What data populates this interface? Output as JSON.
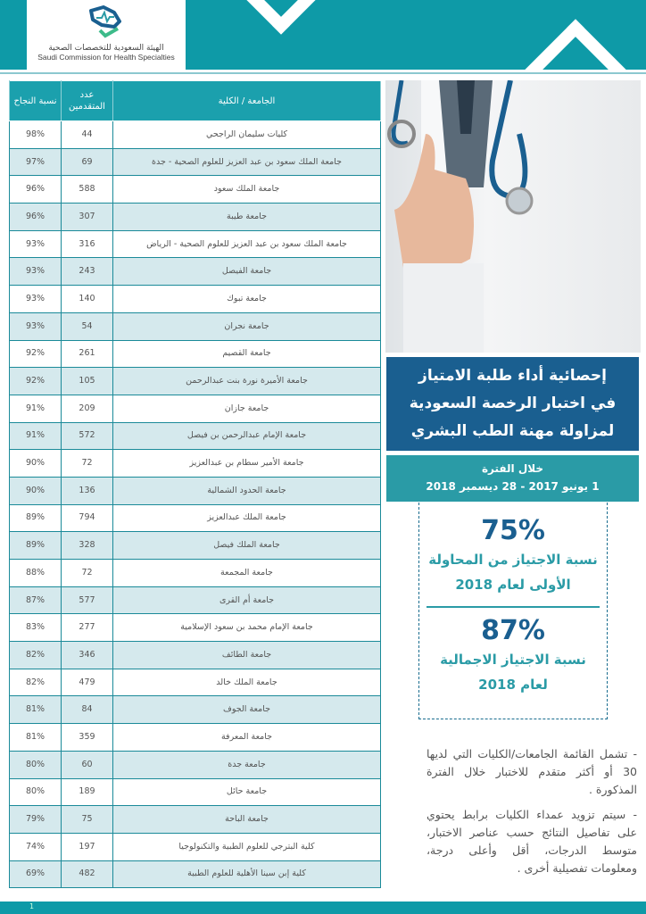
{
  "header": {
    "logo_ar": "الهيئة السعودية للتخصصات الصحية",
    "logo_en": "Saudi Commission for Health Specialties"
  },
  "colors": {
    "teal": "#0e9aa7",
    "navy": "#1a5f90",
    "row_alt": "#d5e9ed"
  },
  "table": {
    "headers": {
      "name": "الجامعة / الكلية",
      "count": "عدد المتقدمين",
      "pct": "نسبة النجاح"
    },
    "rows": [
      {
        "name": "كليات سليمان الراجحي",
        "count": "44",
        "pct": "98%"
      },
      {
        "name": "جامعة الملك سعود بن عبد العزيز للعلوم الصحية - جدة",
        "count": "69",
        "pct": "97%"
      },
      {
        "name": "جامعة الملك سعود",
        "count": "588",
        "pct": "96%"
      },
      {
        "name": "جامعة طيبة",
        "count": "307",
        "pct": "96%"
      },
      {
        "name": "جامعة الملك سعود بن عبد العزيز للعلوم الصحية - الرياض",
        "count": "316",
        "pct": "93%"
      },
      {
        "name": "جامعة الفيصل",
        "count": "243",
        "pct": "93%"
      },
      {
        "name": "جامعة تبوك",
        "count": "140",
        "pct": "93%"
      },
      {
        "name": "جامعة نجران",
        "count": "54",
        "pct": "93%"
      },
      {
        "name": "جامعة القصيم",
        "count": "261",
        "pct": "92%"
      },
      {
        "name": "جامعة الأميرة نورة بنت عبدالرحمن",
        "count": "105",
        "pct": "92%"
      },
      {
        "name": "جامعة جازان",
        "count": "209",
        "pct": "91%"
      },
      {
        "name": "جامعة الإمام عبدالرحمن بن فيصل",
        "count": "572",
        "pct": "91%"
      },
      {
        "name": "جامعة الأمير سطام بن عبدالعزيز",
        "count": "72",
        "pct": "90%"
      },
      {
        "name": "جامعة الحدود الشمالية",
        "count": "136",
        "pct": "90%"
      },
      {
        "name": "جامعة الملك عبدالعزيز",
        "count": "794",
        "pct": "89%"
      },
      {
        "name": "جامعة الملك فيصل",
        "count": "328",
        "pct": "89%"
      },
      {
        "name": "جامعة المجمعة",
        "count": "72",
        "pct": "88%"
      },
      {
        "name": "جامعة أم القرى",
        "count": "577",
        "pct": "87%"
      },
      {
        "name": "جامعة الإمام محمد بن سعود الإسلامية",
        "count": "277",
        "pct": "83%"
      },
      {
        "name": "جامعة الطائف",
        "count": "346",
        "pct": "82%"
      },
      {
        "name": "جامعة الملك خالد",
        "count": "479",
        "pct": "82%"
      },
      {
        "name": "جامعة الجوف",
        "count": "84",
        "pct": "81%"
      },
      {
        "name": "جامعة المعرفة",
        "count": "359",
        "pct": "81%"
      },
      {
        "name": "جامعة جدة",
        "count": "60",
        "pct": "80%"
      },
      {
        "name": "جامعة حائل",
        "count": "189",
        "pct": "80%"
      },
      {
        "name": "جامعة الباحة",
        "count": "75",
        "pct": "79%"
      },
      {
        "name": "كلية البترجي للعلوم الطبية والتكنولوجيا",
        "count": "197",
        "pct": "74%"
      },
      {
        "name": "كلية إبن سينا الأهلية للعلوم الطبية",
        "count": "482",
        "pct": "69%"
      }
    ]
  },
  "title": {
    "line1": "إحصائية أداء طلبة الامتياز",
    "line2": "في اختبار الرخصة السعودية",
    "line3": "لمزاولة مهنة الطب البشري"
  },
  "period": {
    "label": "خلال الفترة",
    "range": "1 يونيو 2017 - 28 ديسمبر 2018"
  },
  "stats": [
    {
      "value": "75%",
      "line1": "نسبة الاجتياز من المحاولة",
      "line2": "الأولى لعام 2018"
    },
    {
      "value": "87%",
      "line1": "نسبة الاجتياز الاجمالية",
      "line2": "لعام 2018"
    }
  ],
  "notes": [
    "- تشمل القائمة الجامعات/الكليات التي لديها 30 أو أكثر متقدم للاختبار خلال الفترة المذكورة .",
    "- سيتم تزويد عمداء الكليات برابط يحتوي على تفاصيل النتائج حسب عناصر الاختبار، متوسط الدرجات، أقل وأعلى درجة، ومعلومات تفصيلية أخرى ."
  ],
  "page_number": "1"
}
